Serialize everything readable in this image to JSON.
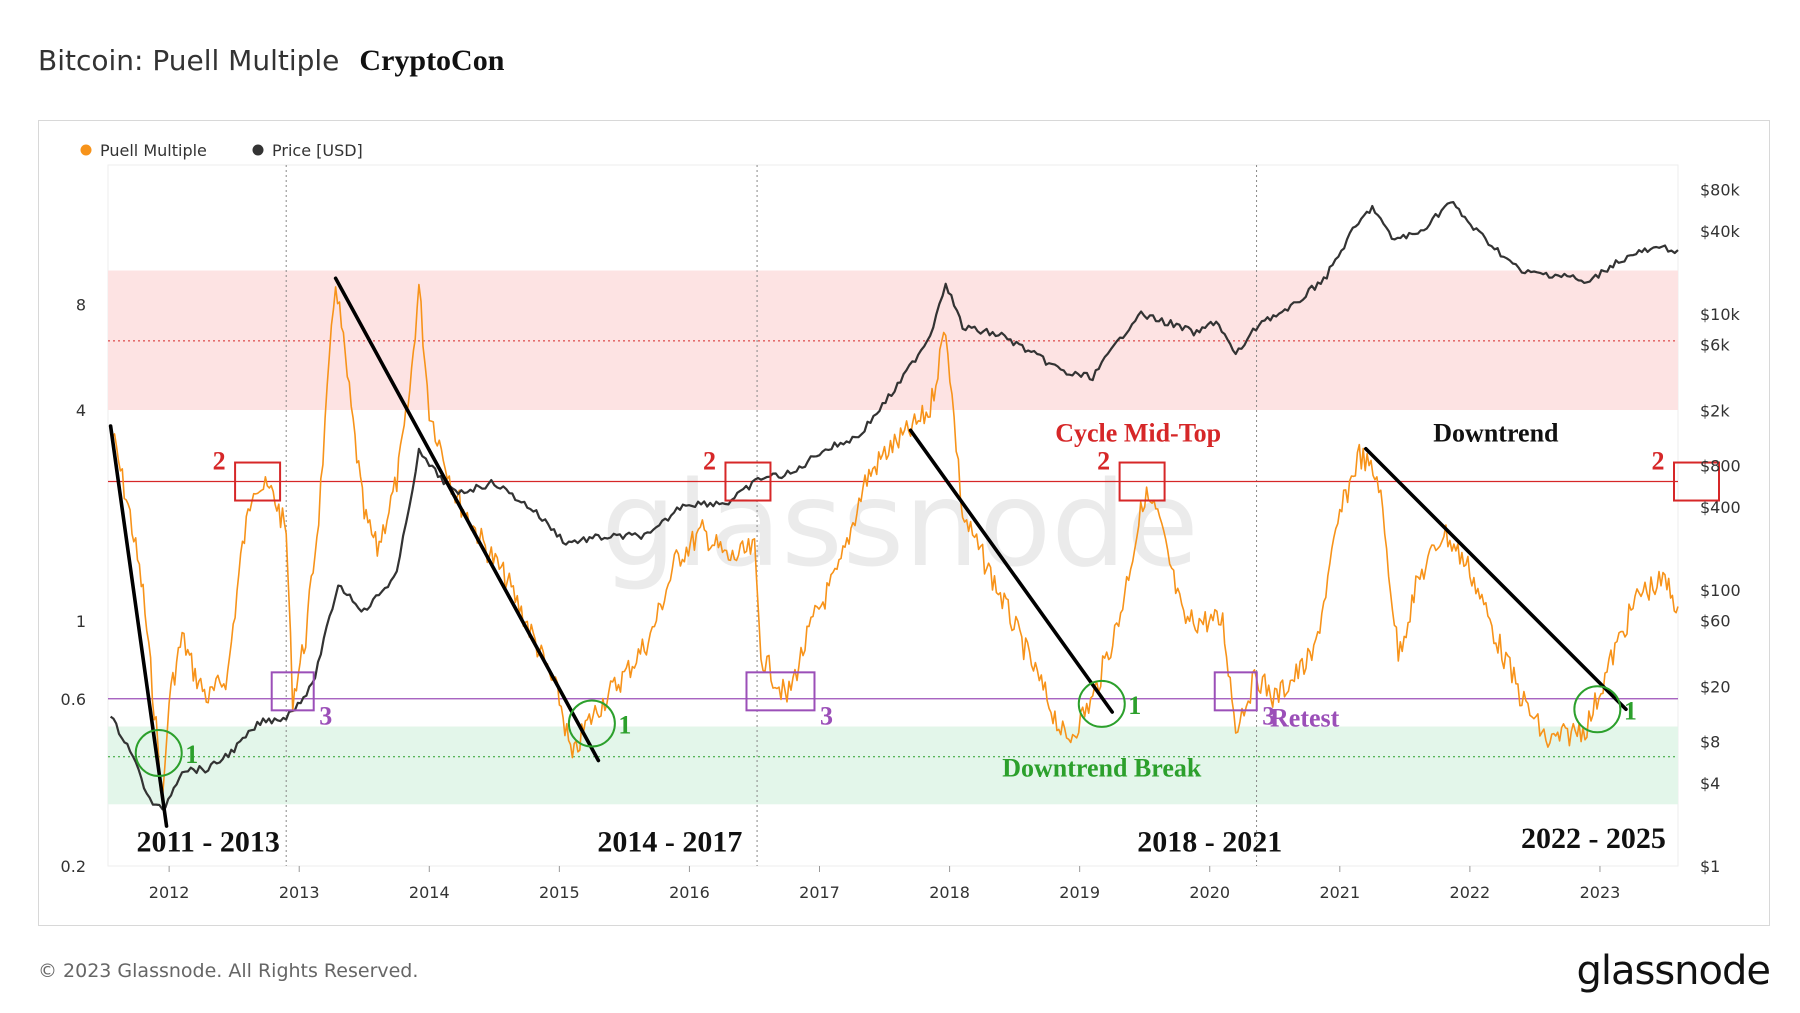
{
  "header": {
    "title": "Bitcoin: Puell Multiple",
    "author": "CryptoCon"
  },
  "footer": {
    "copyright": "© 2023 Glassnode. All Rights Reserved.",
    "brand": "glassnode"
  },
  "watermark": "glassnode",
  "colors": {
    "puell": "#f7931a",
    "price": "#333333",
    "red": "#d62728",
    "green": "#2ca02c",
    "purple": "#9b4fb8",
    "top_band": "#fde3e3",
    "bottom_band": "#e3f6ea"
  },
  "chart_data": {
    "type": "line",
    "legend": [
      {
        "name": "Puell Multiple",
        "color": "#f7931a"
      },
      {
        "name": "Price [USD]",
        "color": "#333333"
      }
    ],
    "legend_position": "top-left",
    "x_ticks": [
      "2012",
      "2013",
      "2014",
      "2015",
      "2016",
      "2017",
      "2018",
      "2019",
      "2020",
      "2021",
      "2022",
      "2023"
    ],
    "xlim": [
      2011.53,
      2023.6
    ],
    "y_left": {
      "scale": "log",
      "ticks": [
        "0.2",
        "0.6",
        "1",
        "4",
        "8"
      ],
      "lim": [
        0.2,
        20
      ]
    },
    "y_right": {
      "scale": "log",
      "ticks": [
        "$1",
        "$4",
        "$8",
        "$20",
        "$60",
        "$100",
        "$400",
        "$800",
        "$2k",
        "$6k",
        "$10k",
        "$40k",
        "$80k"
      ],
      "lim": [
        1,
        120000
      ]
    },
    "bands": [
      {
        "name": "top",
        "from": 4,
        "to": 10
      },
      {
        "name": "bottom",
        "from": 0.3,
        "to": 0.5
      }
    ],
    "reference_lines": [
      {
        "y": 2.5,
        "color": "red"
      },
      {
        "y": 0.6,
        "color": "purple"
      },
      {
        "y": 6.3,
        "style": "dotted-red"
      },
      {
        "y": 0.41,
        "style": "dotted-green"
      }
    ],
    "halving_lines": [
      2012.9,
      2016.52,
      2020.36
    ],
    "series": [
      {
        "name": "Puell Multiple",
        "points": [
          [
            2011.55,
            3.6
          ],
          [
            2011.7,
            2.0
          ],
          [
            2011.8,
            1.2
          ],
          [
            2011.9,
            0.5
          ],
          [
            2011.95,
            0.3
          ],
          [
            2012.0,
            0.6
          ],
          [
            2012.1,
            0.9
          ],
          [
            2012.2,
            0.7
          ],
          [
            2012.3,
            0.6
          ],
          [
            2012.45,
            0.7
          ],
          [
            2012.55,
            1.5
          ],
          [
            2012.65,
            2.5
          ],
          [
            2012.8,
            2.3
          ],
          [
            2012.9,
            1.8
          ],
          [
            2012.95,
            0.6
          ],
          [
            2013.05,
            0.9
          ],
          [
            2013.15,
            2.0
          ],
          [
            2013.28,
            9.5
          ],
          [
            2013.4,
            4.0
          ],
          [
            2013.5,
            2.0
          ],
          [
            2013.6,
            1.6
          ],
          [
            2013.75,
            2.5
          ],
          [
            2013.85,
            4.5
          ],
          [
            2013.92,
            9.0
          ],
          [
            2014.0,
            4.0
          ],
          [
            2014.2,
            2.3
          ],
          [
            2014.4,
            1.7
          ],
          [
            2014.6,
            1.3
          ],
          [
            2014.8,
            0.9
          ],
          [
            2015.0,
            0.6
          ],
          [
            2015.1,
            0.4
          ],
          [
            2015.2,
            0.5
          ],
          [
            2015.35,
            0.6
          ],
          [
            2015.5,
            0.7
          ],
          [
            2015.7,
            0.9
          ],
          [
            2015.9,
            1.5
          ],
          [
            2016.1,
            1.8
          ],
          [
            2016.3,
            1.5
          ],
          [
            2016.5,
            1.6
          ],
          [
            2016.55,
            0.8
          ],
          [
            2016.75,
            0.6
          ],
          [
            2016.95,
            1.0
          ],
          [
            2017.15,
            1.4
          ],
          [
            2017.35,
            2.5
          ],
          [
            2017.5,
            3.0
          ],
          [
            2017.7,
            3.5
          ],
          [
            2017.85,
            4.0
          ],
          [
            2017.97,
            7.0
          ],
          [
            2018.1,
            2.0
          ],
          [
            2018.3,
            1.4
          ],
          [
            2018.6,
            0.8
          ],
          [
            2018.9,
            0.45
          ],
          [
            2019.1,
            0.6
          ],
          [
            2019.3,
            1.0
          ],
          [
            2019.5,
            2.3
          ],
          [
            2019.6,
            2.0
          ],
          [
            2019.8,
            1.0
          ],
          [
            2020.1,
            1.0
          ],
          [
            2020.2,
            0.5
          ],
          [
            2020.36,
            0.7
          ],
          [
            2020.5,
            0.6
          ],
          [
            2020.8,
            0.8
          ],
          [
            2021.0,
            2.0
          ],
          [
            2021.15,
            3.0
          ],
          [
            2021.3,
            2.5
          ],
          [
            2021.45,
            0.8
          ],
          [
            2021.6,
            1.3
          ],
          [
            2021.8,
            1.8
          ],
          [
            2022.0,
            1.4
          ],
          [
            2022.2,
            0.9
          ],
          [
            2022.4,
            0.6
          ],
          [
            2022.6,
            0.45
          ],
          [
            2022.9,
            0.5
          ],
          [
            2023.1,
            0.8
          ],
          [
            2023.3,
            1.2
          ],
          [
            2023.5,
            1.3
          ],
          [
            2023.6,
            1.1
          ]
        ]
      },
      {
        "name": "Price [USD]",
        "points": [
          [
            2011.55,
            12
          ],
          [
            2011.7,
            7
          ],
          [
            2011.85,
            3
          ],
          [
            2011.95,
            2.5
          ],
          [
            2012.1,
            5
          ],
          [
            2012.3,
            5
          ],
          [
            2012.5,
            7
          ],
          [
            2012.7,
            11
          ],
          [
            2012.9,
            12
          ],
          [
            2013.1,
            20
          ],
          [
            2013.3,
            110
          ],
          [
            2013.5,
            70
          ],
          [
            2013.75,
            130
          ],
          [
            2013.92,
            1000
          ],
          [
            2014.0,
            800
          ],
          [
            2014.2,
            500
          ],
          [
            2014.5,
            600
          ],
          [
            2014.8,
            380
          ],
          [
            2015.05,
            220
          ],
          [
            2015.3,
            240
          ],
          [
            2015.7,
            250
          ],
          [
            2015.95,
            420
          ],
          [
            2016.3,
            430
          ],
          [
            2016.55,
            650
          ],
          [
            2016.8,
            700
          ],
          [
            2017.0,
            1000
          ],
          [
            2017.3,
            1300
          ],
          [
            2017.6,
            3000
          ],
          [
            2017.85,
            7000
          ],
          [
            2017.97,
            17000
          ],
          [
            2018.1,
            8000
          ],
          [
            2018.4,
            7000
          ],
          [
            2018.9,
            3700
          ],
          [
            2019.1,
            3500
          ],
          [
            2019.45,
            10000
          ],
          [
            2019.7,
            8500
          ],
          [
            2019.9,
            7200
          ],
          [
            2020.05,
            9000
          ],
          [
            2020.2,
            5000
          ],
          [
            2020.4,
            9000
          ],
          [
            2020.6,
            10500
          ],
          [
            2020.9,
            19000
          ],
          [
            2021.1,
            40000
          ],
          [
            2021.25,
            60000
          ],
          [
            2021.4,
            35000
          ],
          [
            2021.6,
            38000
          ],
          [
            2021.85,
            65000
          ],
          [
            2022.05,
            40000
          ],
          [
            2022.4,
            20000
          ],
          [
            2022.75,
            19000
          ],
          [
            2022.9,
            16500
          ],
          [
            2023.1,
            23000
          ],
          [
            2023.3,
            28000
          ],
          [
            2023.5,
            30000
          ],
          [
            2023.6,
            29000
          ]
        ]
      }
    ],
    "trendlines": [
      [
        [
          2011.55,
          3.6
        ],
        [
          2011.98,
          0.26
        ]
      ],
      [
        [
          2013.28,
          9.5
        ],
        [
          2015.3,
          0.4
        ]
      ],
      [
        [
          2017.7,
          3.5
        ],
        [
          2019.25,
          0.55
        ]
      ],
      [
        [
          2021.2,
          3.1
        ],
        [
          2023.2,
          0.56
        ]
      ]
    ],
    "markers": [
      {
        "shape": "square",
        "color": "red",
        "x": 2012.68,
        "y": 2.5,
        "label": "2"
      },
      {
        "shape": "square",
        "color": "red",
        "x": 2016.45,
        "y": 2.5,
        "label": "2"
      },
      {
        "shape": "square",
        "color": "red",
        "x": 2019.48,
        "y": 2.5,
        "label": "2"
      },
      {
        "shape": "square",
        "color": "red",
        "x": 2023.7,
        "y": 2.5,
        "label": "2"
      },
      {
        "shape": "square",
        "color": "purple",
        "x": 2012.95,
        "y": 0.63,
        "label": "3"
      },
      {
        "shape": "square",
        "color": "purple",
        "x": 2016.7,
        "y": 0.63,
        "label": "3"
      },
      {
        "shape": "square",
        "color": "purple",
        "x": 2020.2,
        "y": 0.63,
        "label": "3"
      },
      {
        "shape": "circle",
        "color": "green",
        "x": 2011.92,
        "y": 0.42,
        "label": "1"
      },
      {
        "shape": "circle",
        "color": "green",
        "x": 2015.25,
        "y": 0.51,
        "label": "1"
      },
      {
        "shape": "circle",
        "color": "green",
        "x": 2019.17,
        "y": 0.58,
        "label": "1"
      },
      {
        "shape": "circle",
        "color": "green",
        "x": 2022.98,
        "y": 0.56,
        "label": "1"
      }
    ],
    "annotations": [
      {
        "text": "Cycle Mid-Top",
        "x": 2019.45,
        "y": 3.25,
        "color": "red"
      },
      {
        "text": "Downtrend",
        "x": 2022.2,
        "y": 3.25,
        "color": "black"
      },
      {
        "text": "Downtrend Break",
        "x": 2019.17,
        "y": 0.36,
        "color": "green"
      },
      {
        "text": "Retest",
        "x": 2020.73,
        "y": 0.5,
        "color": "purple"
      },
      {
        "text": "2011 - 2013",
        "x": 2012.3,
        "y": 0.22,
        "color": "black"
      },
      {
        "text": "2014 - 2017",
        "x": 2015.85,
        "y": 0.22,
        "color": "black"
      },
      {
        "text": "2018 - 2021",
        "x": 2020.0,
        "y": 0.22,
        "color": "black"
      },
      {
        "text": "2022 - 2025",
        "x": 2022.95,
        "y": 0.225,
        "color": "black"
      }
    ]
  }
}
